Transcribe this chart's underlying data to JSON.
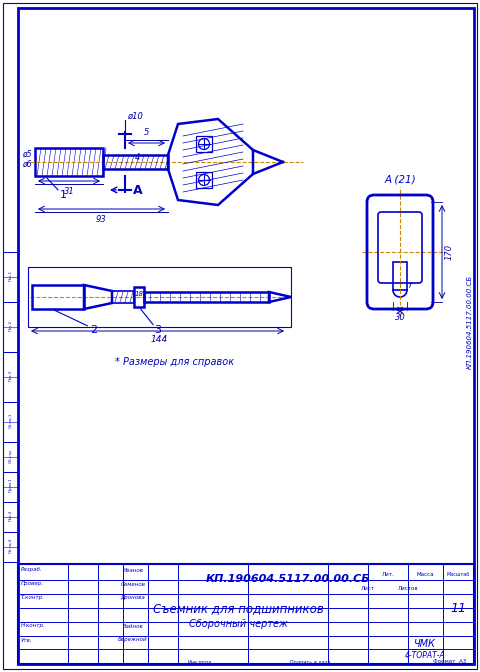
{
  "bg_color": "#ffffff",
  "border_color": "#0000cc",
  "line_color": "#0000cc",
  "dim_color": "#0000aa",
  "center_line_color": "#cc8800",
  "title_block": {
    "drawing_number": "КП.190604.5117.00.00.СБ",
    "title_line1": "Съемник для подшипников",
    "title_line2": "Сборочный чертеж",
    "institution": "ЧМК",
    "format": "4-ТОРАТ-А",
    "format_label": "А3",
    "sheet": "11"
  },
  "note": "* Размеры для справок",
  "section_label": "А (21)"
}
